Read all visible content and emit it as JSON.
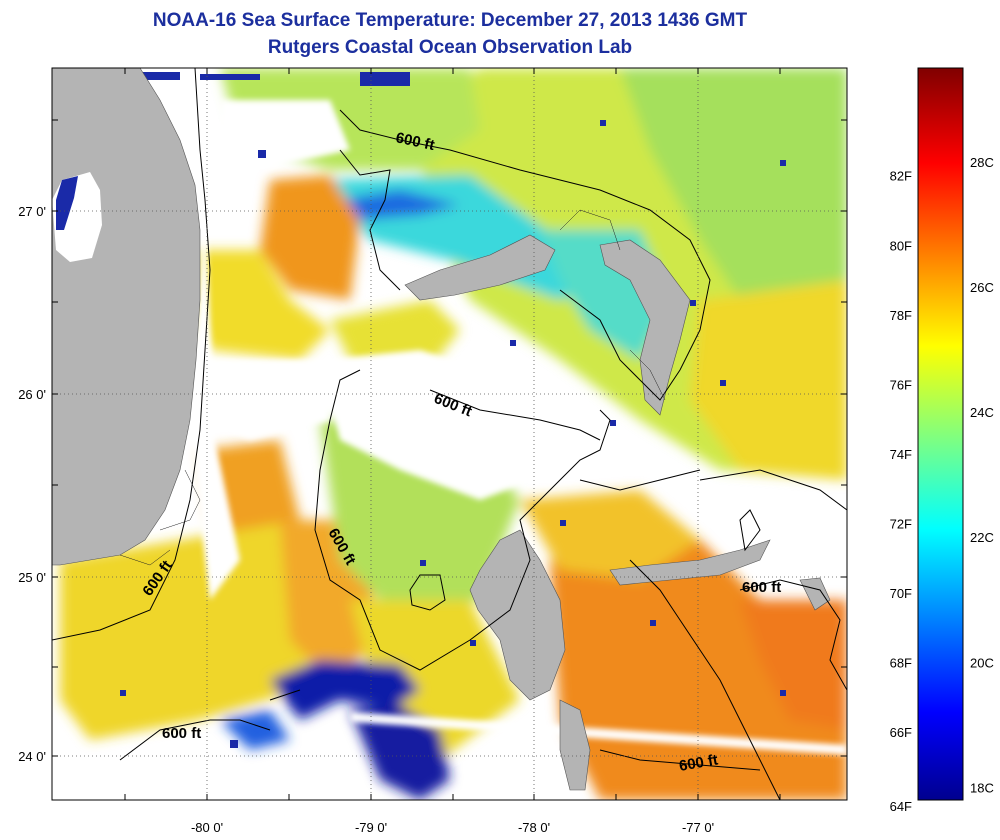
{
  "title": {
    "line1": "NOAA-16 Sea Surface Temperature:  December 27, 2013 1436 GMT",
    "line2": "Rutgers Coastal Ocean Observation Lab"
  },
  "axes": {
    "x_ticks": [
      "-80 0'",
      "-79 0'",
      "-78 0'",
      "-77 0'"
    ],
    "y_ticks": [
      "27 0'",
      "26 0'",
      "25 0'",
      "24 0'"
    ]
  },
  "contours": {
    "label": "600 ft",
    "count_labels": 7
  },
  "colorbar": {
    "fahrenheit_labels": [
      "82F",
      "80F",
      "78F",
      "76F",
      "74F",
      "72F",
      "70F",
      "68F",
      "66F",
      "64F"
    ],
    "celsius_labels": [
      "28C",
      "26C",
      "24C",
      "22C",
      "20C",
      "18C"
    ],
    "range_celsius": [
      17.8,
      29.5
    ]
  },
  "colors": {
    "land": "#b4b4b4",
    "title": "#1c2f9e",
    "warm": "#f29b1f",
    "mid": "#e8e62d",
    "cool": "#98e05a",
    "cold": "#28e0e0",
    "very_cold": "#0c1ea8"
  }
}
